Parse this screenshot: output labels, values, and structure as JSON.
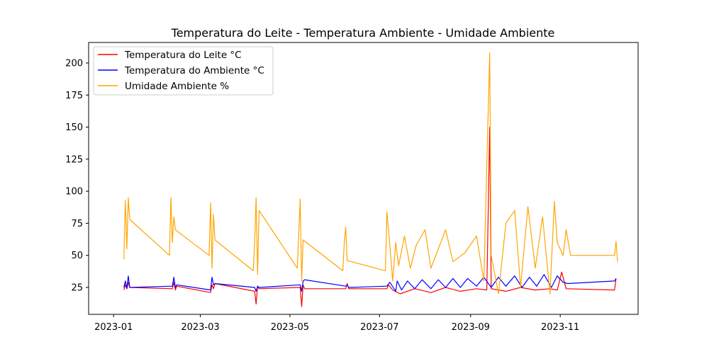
{
  "chart_data": {
    "type": "line",
    "title": "Temperatura do Leite - Temperatura Ambiente - Umidade Ambiente",
    "xlabel": "",
    "ylabel": "",
    "xlim": [
      "2022-12-15",
      "2023-12-24"
    ],
    "ylim": [
      4,
      216
    ],
    "x_ticks": [
      "2023-01",
      "2023-03",
      "2023-05",
      "2023-07",
      "2023-09",
      "2023-11"
    ],
    "y_ticks": [
      25,
      50,
      75,
      100,
      125,
      150,
      175,
      200
    ],
    "grid": false,
    "legend_position": "upper left",
    "series": [
      {
        "name": "Temperatura do Leite °C",
        "color": "#ff0000",
        "points": [
          [
            "2023-01-08",
            23
          ],
          [
            "2023-01-09",
            27
          ],
          [
            "2023-01-10",
            24
          ],
          [
            "2023-01-11",
            29
          ],
          [
            "2023-01-12",
            25
          ],
          [
            "2023-02-10",
            24
          ],
          [
            "2023-02-11",
            29
          ],
          [
            "2023-02-12",
            23
          ],
          [
            "2023-02-13",
            26
          ],
          [
            "2023-03-08",
            21
          ],
          [
            "2023-03-09",
            27
          ],
          [
            "2023-03-10",
            24
          ],
          [
            "2023-03-11",
            28
          ],
          [
            "2023-04-07",
            22
          ],
          [
            "2023-04-08",
            12
          ],
          [
            "2023-04-09",
            26
          ],
          [
            "2023-04-10",
            24
          ],
          [
            "2023-05-08",
            25
          ],
          [
            "2023-05-09",
            10
          ],
          [
            "2023-05-10",
            27
          ],
          [
            "2023-05-11",
            24
          ],
          [
            "2023-06-08",
            24
          ],
          [
            "2023-06-09",
            28
          ],
          [
            "2023-06-10",
            24
          ],
          [
            "2023-07-06",
            24
          ],
          [
            "2023-07-07",
            27
          ],
          [
            "2023-07-10",
            23
          ],
          [
            "2023-07-15",
            20
          ],
          [
            "2023-07-25",
            24
          ],
          [
            "2023-08-05",
            21
          ],
          [
            "2023-08-15",
            25
          ],
          [
            "2023-08-25",
            22
          ],
          [
            "2023-09-05",
            24
          ],
          [
            "2023-09-12",
            23
          ],
          [
            "2023-09-14",
            150
          ],
          [
            "2023-09-15",
            24
          ],
          [
            "2023-09-25",
            22
          ],
          [
            "2023-10-05",
            25
          ],
          [
            "2023-10-15",
            23
          ],
          [
            "2023-10-25",
            24
          ],
          [
            "2023-10-30",
            23
          ],
          [
            "2023-11-02",
            37
          ],
          [
            "2023-11-05",
            24
          ],
          [
            "2023-12-08",
            23
          ],
          [
            "2023-12-09",
            32
          ]
        ]
      },
      {
        "name": "Temperatura do Ambiente °C",
        "color": "#0000ff",
        "points": [
          [
            "2023-01-08",
            25
          ],
          [
            "2023-01-09",
            30
          ],
          [
            "2023-01-10",
            24
          ],
          [
            "2023-01-11",
            34
          ],
          [
            "2023-01-12",
            25
          ],
          [
            "2023-02-10",
            26
          ],
          [
            "2023-02-11",
            33
          ],
          [
            "2023-02-12",
            25
          ],
          [
            "2023-02-13",
            27
          ],
          [
            "2023-03-08",
            23
          ],
          [
            "2023-03-09",
            33
          ],
          [
            "2023-03-10",
            27
          ],
          [
            "2023-03-11",
            28
          ],
          [
            "2023-04-07",
            25
          ],
          [
            "2023-04-08",
            22
          ],
          [
            "2023-04-09",
            26
          ],
          [
            "2023-04-10",
            25
          ],
          [
            "2023-05-08",
            27
          ],
          [
            "2023-05-09",
            22
          ],
          [
            "2023-05-10",
            30
          ],
          [
            "2023-05-11",
            31
          ],
          [
            "2023-06-08",
            26
          ],
          [
            "2023-06-09",
            27
          ],
          [
            "2023-06-10",
            25
          ],
          [
            "2023-07-06",
            26
          ],
          [
            "2023-07-08",
            29
          ],
          [
            "2023-07-12",
            22
          ],
          [
            "2023-07-13",
            30
          ],
          [
            "2023-07-16",
            23
          ],
          [
            "2023-07-20",
            30
          ],
          [
            "2023-07-25",
            24
          ],
          [
            "2023-07-30",
            31
          ],
          [
            "2023-08-05",
            24
          ],
          [
            "2023-08-10",
            31
          ],
          [
            "2023-08-15",
            25
          ],
          [
            "2023-08-20",
            32
          ],
          [
            "2023-08-25",
            25
          ],
          [
            "2023-08-30",
            32
          ],
          [
            "2023-09-05",
            26
          ],
          [
            "2023-09-10",
            33
          ],
          [
            "2023-09-15",
            25
          ],
          [
            "2023-09-20",
            33
          ],
          [
            "2023-09-25",
            26
          ],
          [
            "2023-10-01",
            34
          ],
          [
            "2023-10-06",
            25
          ],
          [
            "2023-10-11",
            33
          ],
          [
            "2023-10-16",
            26
          ],
          [
            "2023-10-21",
            35
          ],
          [
            "2023-10-26",
            25
          ],
          [
            "2023-10-30",
            34
          ],
          [
            "2023-11-03",
            29
          ],
          [
            "2023-11-06",
            28
          ],
          [
            "2023-12-08",
            30
          ],
          [
            "2023-12-09",
            32
          ]
        ]
      },
      {
        "name": "Umidade Ambiente %",
        "color": "#ffa500",
        "points": [
          [
            "2023-01-08",
            47
          ],
          [
            "2023-01-09",
            93
          ],
          [
            "2023-01-10",
            55
          ],
          [
            "2023-01-11",
            95
          ],
          [
            "2023-01-12",
            78
          ],
          [
            "2023-02-08",
            50
          ],
          [
            "2023-02-09",
            95
          ],
          [
            "2023-02-10",
            60
          ],
          [
            "2023-02-11",
            80
          ],
          [
            "2023-02-12",
            70
          ],
          [
            "2023-03-07",
            50
          ],
          [
            "2023-03-08",
            91
          ],
          [
            "2023-03-09",
            40
          ],
          [
            "2023-03-10",
            82
          ],
          [
            "2023-03-11",
            62
          ],
          [
            "2023-04-06",
            38
          ],
          [
            "2023-04-07",
            60
          ],
          [
            "2023-04-08",
            95
          ],
          [
            "2023-04-09",
            35
          ],
          [
            "2023-04-10",
            85
          ],
          [
            "2023-05-06",
            40
          ],
          [
            "2023-05-08",
            94
          ],
          [
            "2023-05-09",
            30
          ],
          [
            "2023-05-10",
            62
          ],
          [
            "2023-06-06",
            38
          ],
          [
            "2023-06-07",
            60
          ],
          [
            "2023-06-08",
            72
          ],
          [
            "2023-06-09",
            46
          ],
          [
            "2023-07-05",
            38
          ],
          [
            "2023-07-06",
            84
          ],
          [
            "2023-07-08",
            58
          ],
          [
            "2023-07-10",
            30
          ],
          [
            "2023-07-12",
            60
          ],
          [
            "2023-07-14",
            42
          ],
          [
            "2023-07-18",
            65
          ],
          [
            "2023-07-22",
            40
          ],
          [
            "2023-07-26",
            58
          ],
          [
            "2023-08-01",
            70
          ],
          [
            "2023-08-05",
            40
          ],
          [
            "2023-08-10",
            55
          ],
          [
            "2023-08-15",
            70
          ],
          [
            "2023-08-20",
            45
          ],
          [
            "2023-08-28",
            52
          ],
          [
            "2023-09-05",
            65
          ],
          [
            "2023-09-10",
            30
          ],
          [
            "2023-09-14",
            208
          ],
          [
            "2023-09-15",
            50
          ],
          [
            "2023-09-20",
            20
          ],
          [
            "2023-09-25",
            75
          ],
          [
            "2023-10-01",
            85
          ],
          [
            "2023-10-05",
            25
          ],
          [
            "2023-10-10",
            88
          ],
          [
            "2023-10-15",
            40
          ],
          [
            "2023-10-20",
            80
          ],
          [
            "2023-10-25",
            20
          ],
          [
            "2023-10-28",
            92
          ],
          [
            "2023-10-30",
            60
          ],
          [
            "2023-11-03",
            50
          ],
          [
            "2023-11-05",
            70
          ],
          [
            "2023-11-08",
            50
          ],
          [
            "2023-12-08",
            50
          ],
          [
            "2023-12-09",
            61
          ],
          [
            "2023-12-10",
            45
          ]
        ]
      }
    ]
  }
}
